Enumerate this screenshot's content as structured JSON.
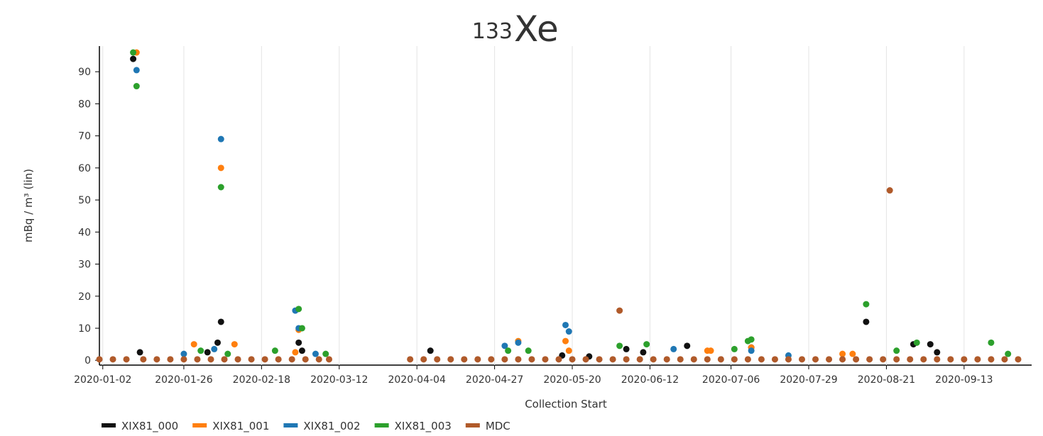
{
  "chart_data": {
    "type": "scatter",
    "title_mass_number": "133",
    "title": "Xe",
    "x_label": "Collection Start",
    "y_label": "mBq / m³ (lin)",
    "xlim": [
      "2020-01-01",
      "2020-10-03"
    ],
    "xticks": [
      {
        "value": "2020-01-02",
        "label": "2020-01-02"
      },
      {
        "value": "2020-01-26",
        "label": "2020-01-26"
      },
      {
        "value": "2020-02-18",
        "label": "2020-02-18"
      },
      {
        "value": "2020-03-12",
        "label": "2020-03-12"
      },
      {
        "value": "2020-04-04",
        "label": "2020-04-04"
      },
      {
        "value": "2020-04-27",
        "label": "2020-04-27"
      },
      {
        "value": "2020-05-20",
        "label": "2020-05-20"
      },
      {
        "value": "2020-06-12",
        "label": "2020-06-12"
      },
      {
        "value": "2020-07-06",
        "label": "2020-07-06"
      },
      {
        "value": "2020-07-29",
        "label": "2020-07-29"
      },
      {
        "value": "2020-08-21",
        "label": "2020-08-21"
      },
      {
        "value": "2020-09-13",
        "label": "2020-09-13"
      }
    ],
    "ylim": [
      -1.5,
      98
    ],
    "yticks": [
      0,
      10,
      20,
      30,
      40,
      50,
      60,
      70,
      80,
      90
    ],
    "legend": "bottom-left",
    "series": [
      {
        "name": "XIX81_000",
        "color": "#111111",
        "x": [
          "2020-01-11",
          "2020-01-13",
          "2020-02-02",
          "2020-02-05",
          "2020-02-06",
          "2020-02-29",
          "2020-03-01",
          "2020-04-08",
          "2020-06-05",
          "2020-06-10",
          "2020-06-23",
          "2020-07-12",
          "2020-08-15",
          "2020-08-29",
          "2020-09-03",
          "2020-09-05",
          "2020-05-17",
          "2020-05-25"
        ],
        "values": [
          94,
          2.5,
          2.5,
          5.5,
          12,
          5.5,
          3,
          3,
          3.5,
          2.5,
          4.5,
          4,
          12,
          5,
          5,
          2.5,
          1.5,
          1.2
        ]
      },
      {
        "name": "XIX81_001",
        "color": "#ff7f0e",
        "x": [
          "2020-01-12",
          "2020-01-29",
          "2020-02-06",
          "2020-02-10",
          "2020-02-28",
          "2020-02-29",
          "2020-05-04",
          "2020-05-18",
          "2020-05-19",
          "2020-06-29",
          "2020-06-30",
          "2020-08-08",
          "2020-08-11",
          "2020-07-12"
        ],
        "values": [
          96,
          5,
          60,
          5,
          2.5,
          9.5,
          6,
          6,
          3,
          3,
          3,
          2,
          2,
          4
        ]
      },
      {
        "name": "XIX81_002",
        "color": "#1f77b4",
        "x": [
          "2020-01-12",
          "2020-02-06",
          "2020-02-28",
          "2020-02-29",
          "2020-05-18",
          "2020-05-19",
          "2020-05-04",
          "2020-04-30",
          "2020-06-19",
          "2020-07-12",
          "2020-07-23",
          "2020-02-04",
          "2020-01-26",
          "2020-03-05"
        ],
        "values": [
          90.5,
          69,
          15.5,
          10,
          11,
          9,
          5.5,
          4.5,
          3.5,
          3,
          1.5,
          3.5,
          2,
          2
        ]
      },
      {
        "name": "XIX81_003",
        "color": "#2ca02c",
        "x": [
          "2020-01-11",
          "2020-01-12",
          "2020-02-06",
          "2020-02-29",
          "2020-03-01",
          "2020-03-08",
          "2020-02-22",
          "2020-05-01",
          "2020-05-07",
          "2020-06-03",
          "2020-06-11",
          "2020-07-07",
          "2020-07-11",
          "2020-07-12",
          "2020-08-15",
          "2020-08-24",
          "2020-08-30",
          "2020-09-21",
          "2020-09-26",
          "2020-01-31",
          "2020-02-08"
        ],
        "values": [
          96,
          85.5,
          54,
          16,
          10,
          2,
          3,
          3,
          3,
          4.5,
          5,
          3.5,
          6,
          6.5,
          17.5,
          3,
          5.5,
          5.5,
          2,
          3,
          2
        ]
      },
      {
        "name": "MDC",
        "color": "#b05a2a",
        "x": [
          "2020-08-22",
          "2020-06-03",
          "2020-01-01",
          "2020-01-05",
          "2020-01-09",
          "2020-01-14",
          "2020-01-18",
          "2020-01-22",
          "2020-01-26",
          "2020-01-30",
          "2020-02-03",
          "2020-02-07",
          "2020-02-11",
          "2020-02-15",
          "2020-02-19",
          "2020-02-23",
          "2020-02-27",
          "2020-03-02",
          "2020-03-06",
          "2020-03-09",
          "2020-04-02",
          "2020-04-06",
          "2020-04-10",
          "2020-04-14",
          "2020-04-18",
          "2020-04-22",
          "2020-04-26",
          "2020-04-30",
          "2020-05-04",
          "2020-05-08",
          "2020-05-12",
          "2020-05-16",
          "2020-05-20",
          "2020-05-24",
          "2020-05-28",
          "2020-06-01",
          "2020-06-05",
          "2020-06-09",
          "2020-06-13",
          "2020-06-17",
          "2020-06-21",
          "2020-06-25",
          "2020-06-29",
          "2020-07-03",
          "2020-07-07",
          "2020-07-11",
          "2020-07-15",
          "2020-07-19",
          "2020-07-23",
          "2020-07-27",
          "2020-07-31",
          "2020-08-04",
          "2020-08-08",
          "2020-08-12",
          "2020-08-16",
          "2020-08-20",
          "2020-08-24",
          "2020-08-28",
          "2020-09-01",
          "2020-09-05",
          "2020-09-09",
          "2020-09-13",
          "2020-09-17",
          "2020-09-21",
          "2020-09-25",
          "2020-09-29"
        ],
        "values": [
          53,
          15.5,
          0.3,
          0.3,
          0.3,
          0.3,
          0.3,
          0.3,
          0.3,
          0.3,
          0.3,
          0.3,
          0.3,
          0.3,
          0.3,
          0.3,
          0.3,
          0.3,
          0.3,
          0.3,
          0.3,
          0.3,
          0.3,
          0.3,
          0.3,
          0.3,
          0.3,
          0.3,
          0.3,
          0.3,
          0.3,
          0.3,
          0.3,
          0.3,
          0.3,
          0.3,
          0.3,
          0.3,
          0.3,
          0.3,
          0.3,
          0.3,
          0.3,
          0.3,
          0.3,
          0.3,
          0.3,
          0.3,
          0.3,
          0.3,
          0.3,
          0.3,
          0.3,
          0.3,
          0.3,
          0.3,
          0.3,
          0.3,
          0.3,
          0.3,
          0.3,
          0.3,
          0.3,
          0.3,
          0.3,
          0.3
        ]
      }
    ]
  }
}
